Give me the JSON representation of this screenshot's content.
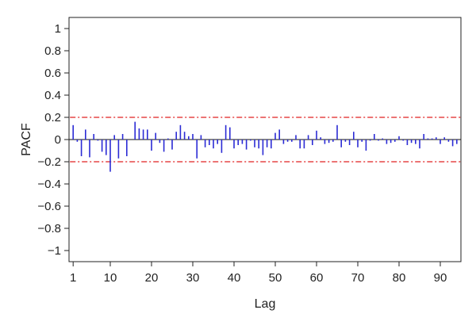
{
  "chart_data": {
    "type": "bar",
    "title": "",
    "xlabel": "Lag",
    "ylabel": "PACF",
    "xlim": [
      0,
      95
    ],
    "ylim": [
      -1.1,
      1.1
    ],
    "x_ticks": [
      1,
      10,
      20,
      30,
      40,
      50,
      60,
      70,
      80,
      90
    ],
    "x_tick_labels": [
      "1",
      "10",
      "20",
      "30",
      "40",
      "50",
      "60",
      "70",
      "80",
      "90"
    ],
    "y_ticks": [
      1,
      0.8,
      0.6,
      0.4,
      0.2,
      0,
      -0.2,
      -0.4,
      -0.6,
      -0.8,
      -1
    ],
    "y_tick_labels": [
      "1",
      "0.8",
      "0.6",
      "0.4",
      "0.2",
      "0",
      "−0.2",
      "−0.4",
      "−0.6",
      "−0.8",
      "−1"
    ],
    "grid": false,
    "confidence_band": 0.2,
    "colors": {
      "bars": "#2b2bd4",
      "confidence": "#e02020",
      "axis": "#222222"
    },
    "series": [
      {
        "x": [
          1,
          2,
          3,
          4,
          5,
          6,
          7,
          8,
          9,
          10,
          11,
          12,
          13,
          14,
          15,
          16,
          17,
          18,
          19,
          20,
          21,
          22,
          23,
          24,
          25,
          26,
          27,
          28,
          29,
          30,
          31,
          32,
          33,
          34,
          35,
          36,
          37,
          38,
          39,
          40,
          41,
          42,
          43,
          44,
          45,
          46,
          47,
          48,
          49,
          50,
          51,
          52,
          53,
          54,
          55,
          56,
          57,
          58,
          59,
          60,
          61,
          62,
          63,
          64,
          65,
          66,
          67,
          68,
          69,
          70,
          71,
          72,
          73,
          74,
          75,
          76,
          77,
          78,
          79,
          80,
          81,
          82,
          83,
          84,
          85,
          86,
          87,
          88,
          89,
          90,
          91,
          92,
          93,
          94
        ],
        "values": [
          0.13,
          -0.02,
          -0.15,
          0.09,
          -0.16,
          0.05,
          -0.01,
          -0.11,
          -0.14,
          -0.29,
          0.04,
          -0.17,
          0.05,
          -0.15,
          0.0,
          0.16,
          0.1,
          0.09,
          0.09,
          -0.1,
          0.06,
          -0.03,
          -0.11,
          0.01,
          -0.09,
          0.07,
          0.13,
          0.07,
          0.03,
          0.05,
          -0.17,
          0.04,
          -0.07,
          -0.05,
          -0.08,
          -0.04,
          -0.12,
          0.13,
          0.11,
          -0.08,
          -0.05,
          -0.04,
          -0.09,
          -0.01,
          -0.07,
          -0.08,
          -0.14,
          -0.07,
          -0.08,
          0.06,
          0.09,
          -0.04,
          -0.02,
          -0.02,
          0.04,
          -0.08,
          -0.08,
          0.04,
          -0.05,
          0.08,
          0.02,
          -0.04,
          -0.03,
          -0.02,
          0.13,
          -0.07,
          -0.02,
          -0.05,
          0.07,
          -0.07,
          -0.02,
          -0.1,
          -0.01,
          0.05,
          -0.01,
          0.01,
          -0.04,
          -0.03,
          -0.02,
          0.03,
          -0.01,
          -0.05,
          -0.03,
          -0.04,
          -0.08,
          0.05,
          0.01,
          0.01,
          0.02,
          -0.04,
          0.02,
          -0.02,
          -0.06,
          -0.04
        ]
      }
    ]
  }
}
